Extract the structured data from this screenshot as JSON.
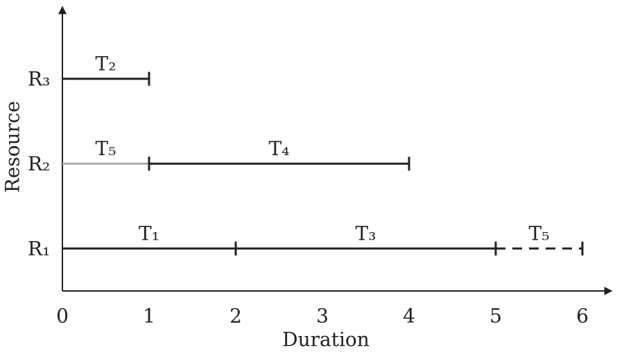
{
  "chart_data": {
    "type": "gantt",
    "x_label": "Duration",
    "y_label": "Resource",
    "xlim": [
      0,
      6.36
    ],
    "xticks": [
      0,
      1,
      2,
      3,
      4,
      5,
      6
    ],
    "resources": [
      {
        "name": "R₁",
        "tasks": [
          {
            "label": "T₁",
            "start": 0,
            "end": 2,
            "color": "#222222",
            "style": "solid"
          },
          {
            "label": "T₃",
            "start": 2,
            "end": 5,
            "color": "#222222",
            "style": "solid"
          },
          {
            "label": "T₅",
            "start": 5,
            "end": 6,
            "color": "#222222",
            "style": "dashed"
          }
        ]
      },
      {
        "name": "R₂",
        "tasks": [
          {
            "label": "T₅",
            "start": 0,
            "end": 1,
            "color": "#aaaaaa",
            "style": "solid"
          },
          {
            "label": "T₄",
            "start": 1,
            "end": 4,
            "color": "#222222",
            "style": "solid"
          }
        ]
      },
      {
        "name": "R₃",
        "tasks": [
          {
            "label": "T₂",
            "start": 0,
            "end": 1,
            "color": "#222222",
            "style": "solid"
          }
        ]
      }
    ]
  }
}
